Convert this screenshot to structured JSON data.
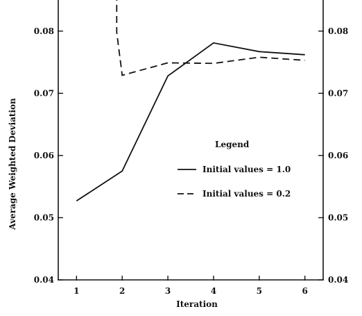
{
  "chart_data": {
    "type": "line",
    "title": "",
    "xlabel": "Iteration",
    "ylabel": "Average Weighted Deviation",
    "x": [
      1,
      2,
      3,
      4,
      5,
      6
    ],
    "x_tick_labels": [
      "1",
      "2",
      "3",
      "4",
      "5",
      "6"
    ],
    "ylim": [
      0.04,
      0.085
    ],
    "y_ticks": [
      0.04,
      0.05,
      0.06,
      0.07,
      0.08
    ],
    "y_tick_labels": [
      "0.04",
      "0.05",
      "0.06",
      "0.07",
      "0.08"
    ],
    "right_y_tick_labels": [
      "0.04",
      "0.05",
      "0.06",
      "0.07",
      "0.08"
    ],
    "grid": false,
    "legend": {
      "title": "Legend",
      "placement": "center-right"
    },
    "series": [
      {
        "name": "Initial values = 1.0",
        "style": "solid",
        "x": [
          1,
          2,
          3,
          4,
          5,
          6
        ],
        "values": [
          0.0527,
          0.0575,
          0.0728,
          0.0781,
          0.0767,
          0.0762
        ]
      },
      {
        "name": "Initial values = 0.2",
        "style": "dashed",
        "x": [
          1.88,
          1.88,
          2,
          3,
          4,
          5,
          6
        ],
        "values": [
          0.086,
          0.0798,
          0.0729,
          0.0749,
          0.0748,
          0.0758,
          0.0753
        ]
      }
    ]
  }
}
